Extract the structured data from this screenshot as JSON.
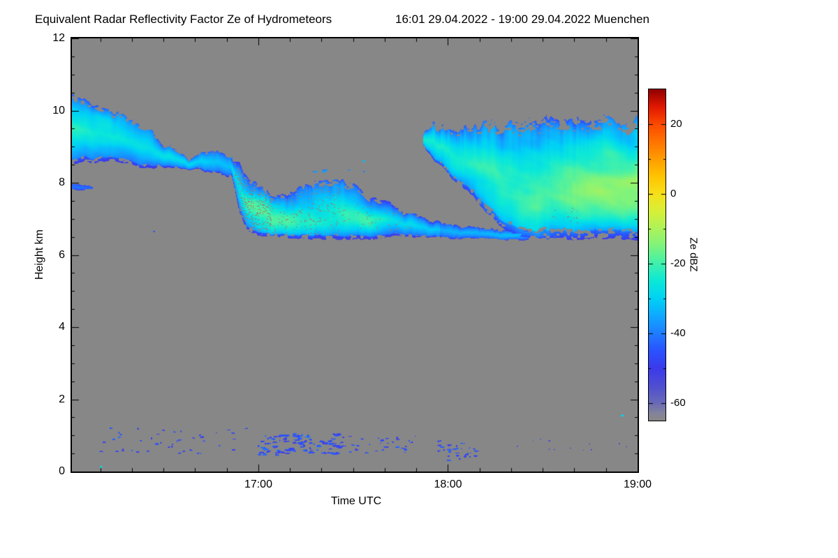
{
  "chart_data": {
    "type": "heatmap",
    "title": "Equivalent Radar Reflectivity Factor Ze of Hydrometeors",
    "period": "16:01 29.04.2022 - 19:00 29.04.2022 Muenchen",
    "xlabel": "Time UTC",
    "ylabel": "Height km",
    "value_unit": "dBZ",
    "x_range_hours": [
      16.0167,
      19.0
    ],
    "y_range_km": [
      0,
      12
    ],
    "x_ticks": [
      {
        "t": 17.0,
        "label": "17:00"
      },
      {
        "t": 18.0,
        "label": "18:00"
      },
      {
        "t": 19.0,
        "label": "19:00"
      }
    ],
    "y_ticks": [
      {
        "v": 0,
        "label": "0"
      },
      {
        "v": 2,
        "label": "2"
      },
      {
        "v": 4,
        "label": "4"
      },
      {
        "v": 6,
        "label": "6"
      },
      {
        "v": 8,
        "label": "8"
      },
      {
        "v": 10,
        "label": "10"
      },
      {
        "v": 12,
        "label": "12"
      }
    ],
    "background_nodata": "#878787",
    "colorbar": {
      "label": "Ze dBZ",
      "range": [
        -65,
        30
      ],
      "ticks": [
        {
          "v": 20,
          "label": "20"
        },
        {
          "v": 0,
          "label": "0"
        },
        {
          "v": -20,
          "label": "-20"
        },
        {
          "v": -40,
          "label": "-40"
        },
        {
          "v": -60,
          "label": "-60"
        }
      ],
      "stops": [
        {
          "v": -65,
          "color": "#878787"
        },
        {
          "v": -63,
          "color": "#84849a"
        },
        {
          "v": -60,
          "color": "#6a6ab8"
        },
        {
          "v": -55,
          "color": "#4e4ed2"
        },
        {
          "v": -50,
          "color": "#3b3beb"
        },
        {
          "v": -45,
          "color": "#2a52ff"
        },
        {
          "v": -40,
          "color": "#1f7dff"
        },
        {
          "v": -35,
          "color": "#0fa8ff"
        },
        {
          "v": -30,
          "color": "#00d2f5"
        },
        {
          "v": -25,
          "color": "#0ce8d8"
        },
        {
          "v": -20,
          "color": "#3ff0ad"
        },
        {
          "v": -15,
          "color": "#7df37d"
        },
        {
          "v": -10,
          "color": "#aef25a"
        },
        {
          "v": -5,
          "color": "#d7ef38"
        },
        {
          "v": 0,
          "color": "#f7e01b"
        },
        {
          "v": 5,
          "color": "#ffc400"
        },
        {
          "v": 10,
          "color": "#ff9d00"
        },
        {
          "v": 15,
          "color": "#ff7300"
        },
        {
          "v": 20,
          "color": "#fc4a00"
        },
        {
          "v": 25,
          "color": "#e11800"
        },
        {
          "v": 30,
          "color": "#8f0000"
        }
      ]
    },
    "features": [
      {
        "name": "upper-left-cirrus-band",
        "core_dbz": -30,
        "edge_dbz": -46,
        "top_noise": 0.22,
        "top_freq": 16,
        "base_noise": 0.16,
        "base_freq": 13,
        "noise_amp": 12,
        "points": [
          [
            16.017,
            10.45,
            8.5
          ],
          [
            16.1,
            10.3,
            8.55
          ],
          [
            16.18,
            10.1,
            8.6
          ],
          [
            16.26,
            9.95,
            8.5
          ],
          [
            16.34,
            9.75,
            8.45
          ],
          [
            16.42,
            9.45,
            8.45
          ],
          [
            16.5,
            9.05,
            8.4
          ],
          [
            16.58,
            8.85,
            8.35
          ],
          [
            16.63,
            8.6,
            8.32
          ],
          [
            16.7,
            8.8,
            8.28
          ],
          [
            16.78,
            8.78,
            8.25
          ],
          [
            16.86,
            8.72,
            8.22
          ]
        ],
        "patches": [
          {
            "t": 16.1,
            "h": 9.6,
            "rt": 0.2,
            "rh": 0.55,
            "dbz": -23
          },
          {
            "t": 16.28,
            "h": 9.0,
            "rt": 0.25,
            "rh": 0.5,
            "dbz": -24
          },
          {
            "t": 16.5,
            "h": 8.6,
            "rt": 0.2,
            "rh": 0.3,
            "dbz": -26
          }
        ]
      },
      {
        "name": "left-edge-small-patch",
        "core_dbz": -40,
        "edge_dbz": -48,
        "top_noise": 0.05,
        "top_freq": 30,
        "base_noise": 0.05,
        "base_freq": 30,
        "noise_amp": 6,
        "points": [
          [
            16.017,
            7.97,
            7.78
          ],
          [
            16.07,
            7.95,
            7.8
          ],
          [
            16.12,
            7.9,
            7.82
          ]
        ],
        "patches": []
      },
      {
        "name": "mid-level-band",
        "core_dbz": -27,
        "edge_dbz": -52,
        "top_noise": 0.22,
        "top_freq": 22,
        "base_noise": 0.06,
        "base_freq": 25,
        "noise_amp": 12,
        "points": [
          [
            16.86,
            8.72,
            8.2
          ],
          [
            16.9,
            8.55,
            7.2
          ],
          [
            16.94,
            8.2,
            6.65
          ],
          [
            17.0,
            7.95,
            6.5
          ],
          [
            17.08,
            7.7,
            6.5
          ],
          [
            17.16,
            7.75,
            6.45
          ],
          [
            17.26,
            8.0,
            6.45
          ],
          [
            17.36,
            8.1,
            6.42
          ],
          [
            17.46,
            8.05,
            6.4
          ],
          [
            17.56,
            7.8,
            6.42
          ],
          [
            17.66,
            7.5,
            6.48
          ],
          [
            17.76,
            7.2,
            6.52
          ],
          [
            17.86,
            7.05,
            6.5
          ],
          [
            17.96,
            6.9,
            6.48
          ]
        ],
        "patches": [
          {
            "t": 17.1,
            "h": 6.75,
            "rt": 0.15,
            "rh": 0.3,
            "dbz": -14
          },
          {
            "t": 17.3,
            "h": 6.7,
            "rt": 0.18,
            "rh": 0.3,
            "dbz": -13
          },
          {
            "t": 17.5,
            "h": 6.8,
            "rt": 0.15,
            "rh": 0.35,
            "dbz": -15
          },
          {
            "t": 17.0,
            "h": 7.3,
            "rt": 0.1,
            "rh": 0.4,
            "dbz": -19
          }
        ]
      },
      {
        "name": "thin-connector-band",
        "core_dbz": -32,
        "edge_dbz": -52,
        "top_noise": 0.08,
        "top_freq": 30,
        "base_noise": 0.05,
        "base_freq": 30,
        "noise_amp": 8,
        "points": [
          [
            17.96,
            6.9,
            6.48
          ],
          [
            18.08,
            6.8,
            6.44
          ],
          [
            18.2,
            6.72,
            6.42
          ],
          [
            18.32,
            6.68,
            6.4
          ],
          [
            18.42,
            6.72,
            6.42
          ]
        ],
        "patches": []
      },
      {
        "name": "right-cloud-mass",
        "core_dbz": -25,
        "edge_dbz": -46,
        "top_noise": 0.28,
        "top_freq": 42,
        "base_noise": 0.1,
        "base_freq": 28,
        "noise_amp": 12,
        "points": [
          [
            17.87,
            9.3,
            9.0
          ],
          [
            17.92,
            9.55,
            8.7
          ],
          [
            17.98,
            9.45,
            8.35
          ],
          [
            18.05,
            9.6,
            8.0
          ],
          [
            18.12,
            9.5,
            7.7
          ],
          [
            18.2,
            9.65,
            7.2
          ],
          [
            18.28,
            9.5,
            6.8
          ],
          [
            18.36,
            9.7,
            6.55
          ],
          [
            18.44,
            9.6,
            6.45
          ],
          [
            18.52,
            9.8,
            6.42
          ],
          [
            18.6,
            9.6,
            6.45
          ],
          [
            18.68,
            9.75,
            6.42
          ],
          [
            18.76,
            9.6,
            6.45
          ],
          [
            18.84,
            9.8,
            6.42
          ],
          [
            18.92,
            9.65,
            6.45
          ],
          [
            19.0,
            9.75,
            6.42
          ]
        ],
        "patches": [
          {
            "t": 18.75,
            "h": 7.2,
            "rt": 0.3,
            "rh": 0.9,
            "dbz": -10
          },
          {
            "t": 18.5,
            "h": 7.0,
            "rt": 0.18,
            "rh": 0.6,
            "dbz": -13
          },
          {
            "t": 19.0,
            "h": 7.6,
            "rt": 0.25,
            "rh": 1.0,
            "dbz": -10
          },
          {
            "t": 18.75,
            "h": 8.8,
            "rt": 0.35,
            "rh": 0.7,
            "dbz": -19
          },
          {
            "t": 18.25,
            "h": 8.9,
            "rt": 0.25,
            "rh": 0.8,
            "dbz": -22
          }
        ]
      }
    ],
    "speck_layers": [
      {
        "name": "low-level-specks-early",
        "seed": 11,
        "count": 45,
        "t0": 16.15,
        "t1": 17.0,
        "h0": 0.5,
        "h1": 1.2,
        "rx0": 0.8,
        "rx1": 3,
        "ry0": 0.6,
        "ry1": 1.4,
        "dbz": -48,
        "dbz_var": 5
      },
      {
        "name": "low-level-specks-cluster",
        "seed": 22,
        "count": 90,
        "t0": 17.0,
        "t1": 17.45,
        "h0": 0.45,
        "h1": 1.05,
        "rx0": 1,
        "rx1": 5,
        "ry0": 0.8,
        "ry1": 1.8,
        "dbz": -46,
        "dbz_var": 5
      },
      {
        "name": "low-level-specks-mid",
        "seed": 33,
        "count": 40,
        "t0": 17.4,
        "t1": 17.85,
        "h0": 0.5,
        "h1": 1.0,
        "rx0": 0.8,
        "rx1": 3,
        "ry0": 0.6,
        "ry1": 1.3,
        "dbz": -48,
        "dbz_var": 4
      },
      {
        "name": "low-level-specks-18utc",
        "seed": 44,
        "count": 30,
        "t0": 17.95,
        "t1": 18.15,
        "h0": 0.3,
        "h1": 0.95,
        "rx0": 0.8,
        "rx1": 3.5,
        "ry0": 0.6,
        "ry1": 1.5,
        "dbz": -47,
        "dbz_var": 4
      },
      {
        "name": "low-level-specks-late",
        "seed": 55,
        "count": 12,
        "t0": 18.2,
        "t1": 18.95,
        "h0": 0.5,
        "h1": 0.9,
        "rx0": 0.7,
        "rx1": 2,
        "ry0": 0.5,
        "ry1": 1,
        "dbz": -49,
        "dbz_var": 4
      },
      {
        "name": "detached-mid-specks",
        "seed": 66,
        "count": 7,
        "t0": 17.3,
        "t1": 17.6,
        "h0": 8.3,
        "h1": 8.6,
        "rx0": 1.5,
        "rx1": 4,
        "ry0": 0.8,
        "ry1": 1.4,
        "dbz": -36,
        "dbz_var": 4
      }
    ],
    "explicit_specks": [
      {
        "t": 16.17,
        "h": 0.12,
        "rx": 2,
        "ry": 1.2,
        "dbz": -28
      },
      {
        "t": 18.92,
        "h": 1.55,
        "rx": 2,
        "ry": 1.2,
        "dbz": -28
      },
      {
        "t": 16.45,
        "h": 6.65,
        "rx": 2,
        "ry": 1,
        "dbz": -44
      }
    ],
    "holes": [
      {
        "t0": 16.87,
        "t1": 17.06,
        "h0": 6.7,
        "h1": 8.4,
        "prob": 0.1,
        "seed": 501,
        "color": "#8d8076"
      },
      {
        "t0": 17.06,
        "t1": 17.42,
        "h0": 6.6,
        "h1": 7.95,
        "prob": 0.04,
        "seed": 502,
        "color": "#8d8076"
      },
      {
        "t0": 17.42,
        "t1": 17.8,
        "h0": 6.7,
        "h1": 7.5,
        "prob": 0.018,
        "seed": 503,
        "color": "#8d8076"
      },
      {
        "t0": 18.55,
        "t1": 18.7,
        "h0": 6.9,
        "h1": 7.3,
        "prob": 0.012,
        "seed": 504,
        "color": "#8d8076"
      }
    ]
  }
}
